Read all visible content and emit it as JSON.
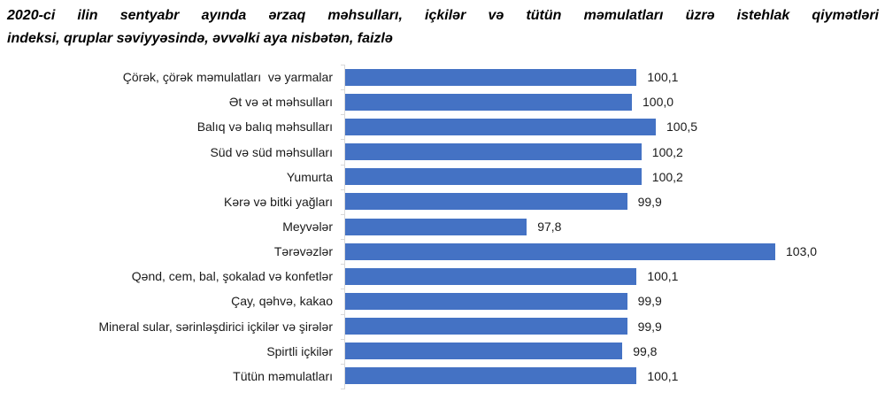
{
  "title": {
    "line1": "2020-ci ilin sentyabr ayında ərzaq məhsulları, içkilər və tütün məmulatları üzrə istehlak qiymətləri",
    "line2": "indeksi, qruplar səviyyəsində, əvvəlki aya nisbətən, faizlə"
  },
  "chart_data": {
    "type": "bar",
    "orientation": "horizontal",
    "title": "2020-ci ilin sentyabr ayında ərzaq məhsulları, içkilər və tütün məmulatları üzrə istehlak qiymətləri indeksi, qruplar səviyyəsində, əvvəlki aya nisbətən, faizlə",
    "categories": [
      "Çörək, çörək məmulatları  və yarmalar",
      "Ət və ət məhsulları",
      "Balıq və balıq məhsulları",
      "Süd və süd məhsulları",
      "Yumurta",
      "Kərə və bitki yağları",
      "Meyvələr",
      "Tərəvəzlər",
      "Qənd, cem, bal, şokalad və konfetlər",
      "Çay, qəhvə, kakao",
      "Mineral sular, sərinləşdirici içkilər və şirələr",
      "Spirtli içkilər",
      "Tütün məmulatları"
    ],
    "values": [
      100.1,
      100.0,
      100.5,
      100.2,
      100.2,
      99.9,
      97.8,
      103.0,
      100.1,
      99.9,
      99.9,
      99.8,
      100.1
    ],
    "value_labels": [
      "100,1",
      "100,0",
      "100,5",
      "100,2",
      "100,2",
      "99,9",
      "97,8",
      "103,0",
      "100,1",
      "99,9",
      "99,9",
      "99,8",
      "100,1"
    ],
    "xlim": [
      94,
      104
    ],
    "grid": false,
    "legend": false,
    "decimal_separator": ",",
    "bar_color": "#4472c4",
    "axis_color": "#d9d9d9",
    "text_color": "#1a1a1a"
  }
}
